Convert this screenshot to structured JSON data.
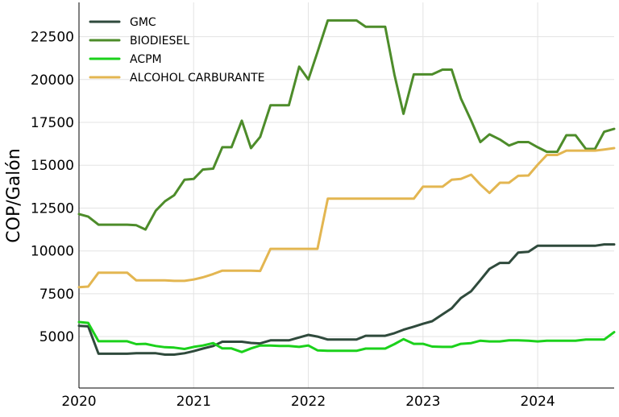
{
  "chart_data": {
    "type": "line",
    "title": "",
    "xlabel": "",
    "ylabel": "COP/Galón",
    "xlim": [
      2020.0,
      2024.667
    ],
    "ylim": [
      2000,
      24500
    ],
    "grid": true,
    "legend_position": "top-left",
    "x_ticks": [
      {
        "value": 2020,
        "label": "2020"
      },
      {
        "value": 2021,
        "label": "2021"
      },
      {
        "value": 2022,
        "label": "2022"
      },
      {
        "value": 2023,
        "label": "2023"
      },
      {
        "value": 2024,
        "label": "2024"
      }
    ],
    "y_ticks": [
      {
        "value": 5000,
        "label": "5000"
      },
      {
        "value": 7500,
        "label": "7500"
      },
      {
        "value": 10000,
        "label": "10000"
      },
      {
        "value": 12500,
        "label": "12500"
      },
      {
        "value": 15000,
        "label": "15000"
      },
      {
        "value": 17500,
        "label": "17500"
      },
      {
        "value": 20000,
        "label": "20000"
      },
      {
        "value": 22500,
        "label": "22500"
      }
    ],
    "series": [
      {
        "name": "GMC",
        "color": "#2f4a3c",
        "points": [
          [
            2020.0,
            5630
          ],
          [
            2020.08,
            5600
          ],
          [
            2020.17,
            4000
          ],
          [
            2020.25,
            4000
          ],
          [
            2020.33,
            4000
          ],
          [
            2020.42,
            4000
          ],
          [
            2020.5,
            4030
          ],
          [
            2020.58,
            4030
          ],
          [
            2020.67,
            4030
          ],
          [
            2020.75,
            3950
          ],
          [
            2020.83,
            3950
          ],
          [
            2020.92,
            4030
          ],
          [
            2021.0,
            4150
          ],
          [
            2021.08,
            4300
          ],
          [
            2021.17,
            4450
          ],
          [
            2021.25,
            4700
          ],
          [
            2021.33,
            4700
          ],
          [
            2021.42,
            4700
          ],
          [
            2021.5,
            4630
          ],
          [
            2021.58,
            4600
          ],
          [
            2021.67,
            4780
          ],
          [
            2021.75,
            4780
          ],
          [
            2021.83,
            4780
          ],
          [
            2021.92,
            4950
          ],
          [
            2022.0,
            5100
          ],
          [
            2022.08,
            5000
          ],
          [
            2022.17,
            4830
          ],
          [
            2022.25,
            4830
          ],
          [
            2022.33,
            4830
          ],
          [
            2022.42,
            4830
          ],
          [
            2022.5,
            5050
          ],
          [
            2022.58,
            5050
          ],
          [
            2022.67,
            5050
          ],
          [
            2022.75,
            5200
          ],
          [
            2022.83,
            5400
          ],
          [
            2022.92,
            5580
          ],
          [
            2023.0,
            5750
          ],
          [
            2023.08,
            5900
          ],
          [
            2023.17,
            6300
          ],
          [
            2023.25,
            6650
          ],
          [
            2023.33,
            7250
          ],
          [
            2023.42,
            7650
          ],
          [
            2023.5,
            8300
          ],
          [
            2023.58,
            8950
          ],
          [
            2023.67,
            9300
          ],
          [
            2023.75,
            9300
          ],
          [
            2023.83,
            9900
          ],
          [
            2023.92,
            9950
          ],
          [
            2024.0,
            10300
          ],
          [
            2024.08,
            10300
          ],
          [
            2024.17,
            10300
          ],
          [
            2024.25,
            10300
          ],
          [
            2024.33,
            10300
          ],
          [
            2024.42,
            10300
          ],
          [
            2024.5,
            10300
          ],
          [
            2024.58,
            10380
          ],
          [
            2024.667,
            10380
          ]
        ]
      },
      {
        "name": "BIODIESEL",
        "color": "#4d8c2a",
        "points": [
          [
            2020.0,
            12150
          ],
          [
            2020.08,
            12000
          ],
          [
            2020.17,
            11530
          ],
          [
            2020.25,
            11530
          ],
          [
            2020.33,
            11530
          ],
          [
            2020.42,
            11530
          ],
          [
            2020.5,
            11500
          ],
          [
            2020.58,
            11250
          ],
          [
            2020.67,
            12350
          ],
          [
            2020.75,
            12900
          ],
          [
            2020.83,
            13250
          ],
          [
            2020.92,
            14150
          ],
          [
            2021.0,
            14200
          ],
          [
            2021.08,
            14750
          ],
          [
            2021.17,
            14800
          ],
          [
            2021.25,
            16050
          ],
          [
            2021.33,
            16050
          ],
          [
            2021.42,
            17600
          ],
          [
            2021.5,
            16000
          ],
          [
            2021.58,
            16650
          ],
          [
            2021.67,
            18500
          ],
          [
            2021.75,
            18500
          ],
          [
            2021.83,
            18500
          ],
          [
            2021.92,
            20750
          ],
          [
            2022.0,
            20000
          ],
          [
            2022.08,
            21600
          ],
          [
            2022.17,
            23450
          ],
          [
            2022.25,
            23450
          ],
          [
            2022.33,
            23450
          ],
          [
            2022.42,
            23450
          ],
          [
            2022.5,
            23080
          ],
          [
            2022.58,
            23080
          ],
          [
            2022.67,
            23080
          ],
          [
            2022.75,
            20300
          ],
          [
            2022.83,
            18000
          ],
          [
            2022.92,
            20300
          ],
          [
            2023.0,
            20300
          ],
          [
            2023.08,
            20300
          ],
          [
            2023.17,
            20580
          ],
          [
            2023.25,
            20580
          ],
          [
            2023.33,
            18900
          ],
          [
            2023.42,
            17600
          ],
          [
            2023.5,
            16350
          ],
          [
            2023.58,
            16800
          ],
          [
            2023.67,
            16500
          ],
          [
            2023.75,
            16150
          ],
          [
            2023.83,
            16350
          ],
          [
            2023.92,
            16350
          ],
          [
            2024.0,
            16050
          ],
          [
            2024.08,
            15780
          ],
          [
            2024.17,
            15780
          ],
          [
            2024.25,
            16750
          ],
          [
            2024.33,
            16750
          ],
          [
            2024.42,
            15950
          ],
          [
            2024.5,
            15950
          ],
          [
            2024.58,
            16950
          ],
          [
            2024.667,
            17120
          ]
        ]
      },
      {
        "name": "ACPM",
        "color": "#1bd11b",
        "points": [
          [
            2020.0,
            5850
          ],
          [
            2020.08,
            5800
          ],
          [
            2020.17,
            4730
          ],
          [
            2020.25,
            4730
          ],
          [
            2020.33,
            4730
          ],
          [
            2020.42,
            4730
          ],
          [
            2020.5,
            4560
          ],
          [
            2020.58,
            4580
          ],
          [
            2020.67,
            4450
          ],
          [
            2020.75,
            4380
          ],
          [
            2020.83,
            4360
          ],
          [
            2020.92,
            4280
          ],
          [
            2021.0,
            4400
          ],
          [
            2021.08,
            4480
          ],
          [
            2021.17,
            4620
          ],
          [
            2021.25,
            4310
          ],
          [
            2021.33,
            4310
          ],
          [
            2021.42,
            4100
          ],
          [
            2021.5,
            4310
          ],
          [
            2021.58,
            4480
          ],
          [
            2021.67,
            4480
          ],
          [
            2021.75,
            4450
          ],
          [
            2021.83,
            4450
          ],
          [
            2021.92,
            4400
          ],
          [
            2022.0,
            4480
          ],
          [
            2022.08,
            4200
          ],
          [
            2022.17,
            4170
          ],
          [
            2022.25,
            4170
          ],
          [
            2022.33,
            4170
          ],
          [
            2022.42,
            4170
          ],
          [
            2022.5,
            4300
          ],
          [
            2022.58,
            4300
          ],
          [
            2022.67,
            4300
          ],
          [
            2022.75,
            4560
          ],
          [
            2022.83,
            4850
          ],
          [
            2022.92,
            4580
          ],
          [
            2023.0,
            4580
          ],
          [
            2023.08,
            4420
          ],
          [
            2023.17,
            4400
          ],
          [
            2023.25,
            4400
          ],
          [
            2023.33,
            4580
          ],
          [
            2023.42,
            4620
          ],
          [
            2023.5,
            4760
          ],
          [
            2023.58,
            4720
          ],
          [
            2023.67,
            4720
          ],
          [
            2023.75,
            4780
          ],
          [
            2023.83,
            4780
          ],
          [
            2023.92,
            4760
          ],
          [
            2024.0,
            4720
          ],
          [
            2024.08,
            4760
          ],
          [
            2024.17,
            4760
          ],
          [
            2024.25,
            4760
          ],
          [
            2024.33,
            4760
          ],
          [
            2024.42,
            4830
          ],
          [
            2024.5,
            4830
          ],
          [
            2024.58,
            4830
          ],
          [
            2024.667,
            5260
          ]
        ]
      },
      {
        "name": "ALCOHOL CARBURANTE",
        "color": "#e3b651",
        "points": [
          [
            2020.0,
            7880
          ],
          [
            2020.08,
            7920
          ],
          [
            2020.17,
            8730
          ],
          [
            2020.25,
            8730
          ],
          [
            2020.33,
            8730
          ],
          [
            2020.42,
            8730
          ],
          [
            2020.5,
            8280
          ],
          [
            2020.58,
            8280
          ],
          [
            2020.67,
            8280
          ],
          [
            2020.75,
            8280
          ],
          [
            2020.83,
            8250
          ],
          [
            2020.92,
            8250
          ],
          [
            2021.0,
            8330
          ],
          [
            2021.08,
            8460
          ],
          [
            2021.17,
            8650
          ],
          [
            2021.25,
            8850
          ],
          [
            2021.33,
            8850
          ],
          [
            2021.42,
            8850
          ],
          [
            2021.5,
            8850
          ],
          [
            2021.58,
            8830
          ],
          [
            2021.67,
            10120
          ],
          [
            2021.75,
            10120
          ],
          [
            2021.83,
            10120
          ],
          [
            2021.92,
            10120
          ],
          [
            2022.0,
            10120
          ],
          [
            2022.08,
            10120
          ],
          [
            2022.17,
            13050
          ],
          [
            2022.25,
            13050
          ],
          [
            2022.33,
            13050
          ],
          [
            2022.42,
            13050
          ],
          [
            2022.5,
            13050
          ],
          [
            2022.58,
            13050
          ],
          [
            2022.67,
            13050
          ],
          [
            2022.75,
            13050
          ],
          [
            2022.83,
            13050
          ],
          [
            2022.92,
            13050
          ],
          [
            2023.0,
            13750
          ],
          [
            2023.08,
            13750
          ],
          [
            2023.17,
            13750
          ],
          [
            2023.25,
            14150
          ],
          [
            2023.33,
            14200
          ],
          [
            2023.42,
            14450
          ],
          [
            2023.5,
            13870
          ],
          [
            2023.58,
            13380
          ],
          [
            2023.67,
            13980
          ],
          [
            2023.75,
            13980
          ],
          [
            2023.83,
            14380
          ],
          [
            2023.92,
            14400
          ],
          [
            2024.0,
            15030
          ],
          [
            2024.08,
            15600
          ],
          [
            2024.17,
            15600
          ],
          [
            2024.25,
            15850
          ],
          [
            2024.33,
            15850
          ],
          [
            2024.42,
            15850
          ],
          [
            2024.5,
            15850
          ],
          [
            2024.58,
            15920
          ],
          [
            2024.667,
            16000
          ]
        ]
      }
    ]
  }
}
